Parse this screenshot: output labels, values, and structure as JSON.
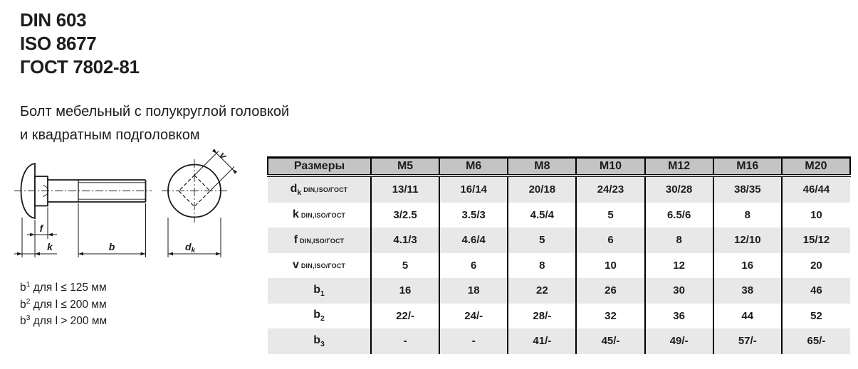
{
  "standards": [
    "DIN 603",
    "ISO 8677",
    "ГОСТ 7802-81"
  ],
  "subtitle": {
    "line1": "Болт мебельный с полукруглой головкой",
    "line2": "и квадратным подголовком"
  },
  "drawing": {
    "f_label": "f",
    "k_label": "k",
    "b_label": "b",
    "v_label": "v",
    "dk_base": "d",
    "dk_sub": "k"
  },
  "footnotes": [
    {
      "base": "b",
      "sup": "1",
      "text": "для l ≤ 125 мм"
    },
    {
      "base": "b",
      "sup": "2",
      "text": "для l ≤ 200 мм"
    },
    {
      "base": "b",
      "sup": "3",
      "text": "для l > 200 мм"
    }
  ],
  "table": {
    "header": [
      "Размеры",
      "M5",
      "M6",
      "M8",
      "M10",
      "M12",
      "M16",
      "M20"
    ],
    "rows": [
      {
        "label_base": "d",
        "label_sub": "k",
        "label_suffix": "DIN,ISO/ГОСТ",
        "values": [
          "13/11",
          "16/14",
          "20/18",
          "24/23",
          "30/28",
          "38/35",
          "46/44"
        ]
      },
      {
        "label_base": "k",
        "label_sub": "",
        "label_suffix": "DIN,ISO/ГОСТ",
        "values": [
          "3/2.5",
          "3.5/3",
          "4.5/4",
          "5",
          "6.5/6",
          "8",
          "10"
        ]
      },
      {
        "label_base": "f",
        "label_sub": "",
        "label_suffix": "DIN,ISO/ГОСТ",
        "values": [
          "4.1/3",
          "4.6/4",
          "5",
          "6",
          "8",
          "12/10",
          "15/12"
        ]
      },
      {
        "label_base": "v",
        "label_sub": "",
        "label_suffix": "DIN,ISO/ГОСТ",
        "values": [
          "5",
          "6",
          "8",
          "10",
          "12",
          "16",
          "20"
        ]
      },
      {
        "label_base": "b",
        "label_sub": "1",
        "label_suffix": "",
        "values": [
          "16",
          "18",
          "22",
          "26",
          "30",
          "38",
          "46"
        ]
      },
      {
        "label_base": "b",
        "label_sub": "2",
        "label_suffix": "",
        "values": [
          "22/-",
          "24/-",
          "28/-",
          "32",
          "36",
          "44",
          "52"
        ]
      },
      {
        "label_base": "b",
        "label_sub": "3",
        "label_suffix": "",
        "values": [
          "-",
          "-",
          "41/-",
          "45/-",
          "49/-",
          "57/-",
          "65/-"
        ]
      }
    ]
  },
  "colors": {
    "header_bg": "#c4c4c4",
    "row_alt_bg": "#e8e8e8",
    "row_bg": "#ffffff",
    "border": "#000000",
    "text": "#1d1d1d"
  }
}
